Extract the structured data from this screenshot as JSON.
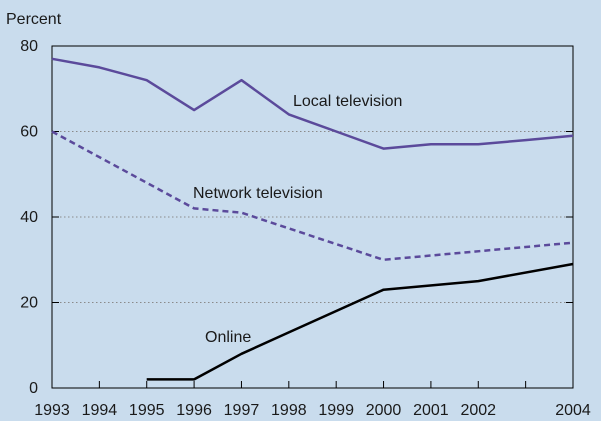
{
  "chart_data": {
    "type": "line",
    "ylabel": "Percent",
    "xlabel": "",
    "ylim": [
      0,
      80
    ],
    "yticks": [
      0,
      20,
      40,
      60,
      80
    ],
    "xlim": [
      1993,
      2004
    ],
    "xticks": [
      1993,
      1994,
      1995,
      1996,
      1997,
      1998,
      1999,
      2000,
      2001,
      2002,
      2004
    ],
    "minor_xticks": [
      2003
    ],
    "grid": "horizontal dotted",
    "series": [
      {
        "name": "Local television",
        "style": "solid",
        "color": "#5b4a9b",
        "x": [
          1993,
          1994,
          1995,
          1996,
          1997,
          1998,
          1999,
          2000,
          2001,
          2002,
          2003,
          2004
        ],
        "values": [
          77,
          75,
          72,
          65,
          72,
          64,
          60,
          56,
          57,
          57,
          58,
          59
        ]
      },
      {
        "name": "Network television",
        "style": "dashed",
        "color": "#5b4a9b",
        "x": [
          1993,
          1996,
          1997,
          2000,
          2004
        ],
        "values": [
          60,
          42,
          41,
          30,
          34
        ]
      },
      {
        "name": "Online",
        "style": "solid",
        "color": "#000000",
        "x": [
          1995,
          1996,
          1997,
          1998,
          2000,
          2002,
          2004
        ],
        "values": [
          2,
          2,
          8,
          13,
          23,
          25,
          29
        ]
      }
    ]
  }
}
